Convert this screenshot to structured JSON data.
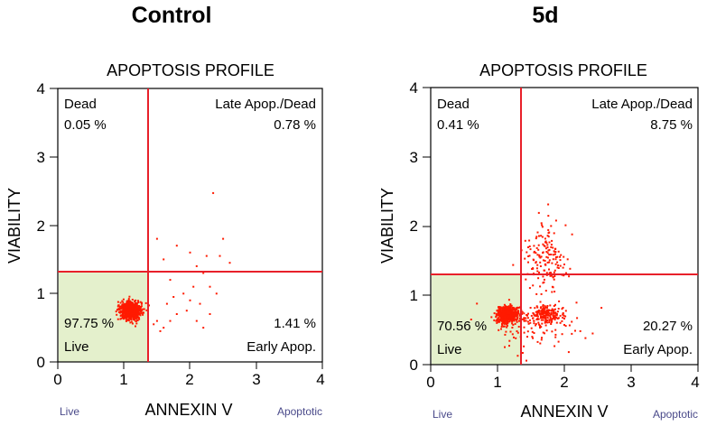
{
  "chart_data": [
    {
      "type": "scatter",
      "panel_title": "Control",
      "title": "APOPTOSIS PROFILE",
      "xlabel": "ANNEXIN V",
      "ylabel": "VIABILITY",
      "xlim": [
        0,
        4
      ],
      "ylim": [
        0,
        4
      ],
      "xticks": [
        "0",
        "1",
        "2",
        "3",
        "4"
      ],
      "yticks": [
        "0",
        "1",
        "2",
        "3",
        "4"
      ],
      "gate_x": 1.35,
      "gate_y": 1.3,
      "quadrants": {
        "dead": {
          "name": "Dead",
          "pct": "0.05 %"
        },
        "late": {
          "name": "Late Apop./Dead",
          "pct": "0.78 %"
        },
        "live": {
          "name": "Live",
          "pct": "97.75 %"
        },
        "early": {
          "name": "Early Apop.",
          "pct": "1.41 %"
        }
      },
      "x_left_note": "Live",
      "x_right_note": "Apoptotic",
      "cluster": {
        "cx": 1.1,
        "cy": 0.75,
        "sx": 0.08,
        "sy": 0.07,
        "n": 700
      },
      "scatter_points": [
        [
          1.6,
          1.5
        ],
        [
          1.7,
          1.2
        ],
        [
          1.8,
          1.7
        ],
        [
          2.0,
          1.6
        ],
        [
          2.1,
          1.4
        ],
        [
          2.2,
          1.3
        ],
        [
          2.3,
          1.1
        ],
        [
          2.0,
          0.9
        ],
        [
          1.9,
          1.0
        ],
        [
          1.5,
          0.6
        ],
        [
          1.6,
          0.5
        ],
        [
          1.7,
          0.6
        ],
        [
          1.8,
          0.7
        ],
        [
          2.1,
          0.6
        ],
        [
          2.2,
          0.5
        ],
        [
          2.3,
          0.7
        ],
        [
          2.35,
          2.47
        ],
        [
          2.5,
          1.8
        ],
        [
          2.6,
          1.45
        ],
        [
          2.4,
          1.0
        ],
        [
          1.5,
          1.8
        ],
        [
          1.55,
          0.45
        ],
        [
          1.95,
          0.75
        ],
        [
          2.05,
          1.1
        ],
        [
          1.45,
          0.55
        ],
        [
          2.45,
          1.55
        ],
        [
          1.75,
          0.95
        ],
        [
          2.15,
          0.85
        ],
        [
          1.65,
          0.85
        ],
        [
          2.25,
          1.55
        ]
      ]
    },
    {
      "type": "scatter",
      "panel_title": "5d",
      "title": "APOPTOSIS PROFILE",
      "xlabel": "ANNEXIN V",
      "ylabel": "VIABILITY",
      "xlim": [
        0,
        4
      ],
      "ylim": [
        0,
        4
      ],
      "xticks": [
        "0",
        "1",
        "2",
        "3",
        "4"
      ],
      "yticks": [
        "0",
        "1",
        "2",
        "3",
        "4"
      ],
      "gate_x": 1.35,
      "gate_y": 1.3,
      "quadrants": {
        "dead": {
          "name": "Dead",
          "pct": "0.41 %"
        },
        "late": {
          "name": "Late Apop./Dead",
          "pct": "8.75 %"
        },
        "live": {
          "name": "Live",
          "pct": "70.56 %"
        },
        "early": {
          "name": "Early Apop.",
          "pct": "20.27 %"
        }
      },
      "x_left_note": "Live",
      "x_right_note": "Apoptotic",
      "clusters": [
        {
          "cx": 1.15,
          "cy": 0.72,
          "sx": 0.08,
          "sy": 0.06,
          "n": 500
        },
        {
          "cx": 1.72,
          "cy": 0.72,
          "sx": 0.12,
          "sy": 0.06,
          "n": 180
        },
        {
          "cx": 1.75,
          "cy": 1.55,
          "sx": 0.18,
          "sy": 0.25,
          "n": 160
        },
        {
          "cx": 1.6,
          "cy": 0.55,
          "sx": 0.35,
          "sy": 0.2,
          "n": 120
        }
      ]
    }
  ]
}
